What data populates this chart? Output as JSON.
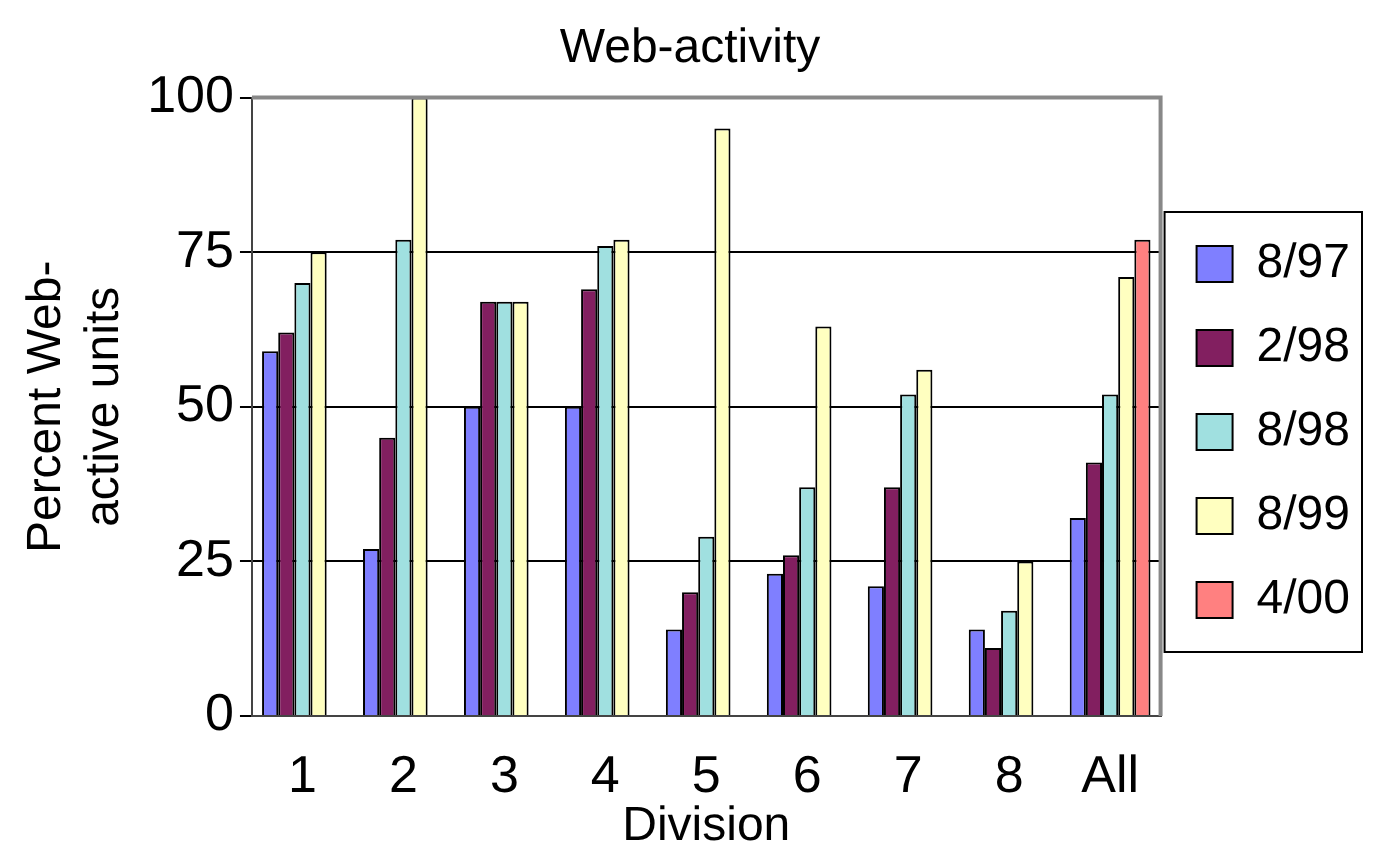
{
  "chart_data": {
    "type": "bar",
    "title": "Web-activity",
    "xlabel": "Division",
    "ylabel": "Percent Web-active units",
    "categories": [
      "1",
      "2",
      "3",
      "4",
      "5",
      "6",
      "7",
      "8",
      "All"
    ],
    "series": [
      {
        "name": "8/97",
        "color": "#7f7fff",
        "values": [
          59,
          27,
          50,
          50,
          14,
          23,
          21,
          14,
          32
        ]
      },
      {
        "name": "2/98",
        "color": "#821f60",
        "values": [
          62,
          45,
          67,
          69,
          20,
          26,
          37,
          11,
          41
        ]
      },
      {
        "name": "8/98",
        "color": "#a0e0e0",
        "values": [
          70,
          77,
          67,
          76,
          29,
          37,
          52,
          17,
          52
        ]
      },
      {
        "name": "8/99",
        "color": "#ffffc0",
        "values": [
          75,
          100,
          67,
          77,
          95,
          63,
          56,
          25,
          71
        ]
      },
      {
        "name": "4/00",
        "color": "#ff8080",
        "values": [
          null,
          null,
          null,
          null,
          null,
          null,
          null,
          null,
          77
        ]
      }
    ],
    "ylim": [
      0,
      100
    ],
    "yticks": [
      0,
      25,
      50,
      75,
      100
    ],
    "grid": "y",
    "legend": "right"
  }
}
